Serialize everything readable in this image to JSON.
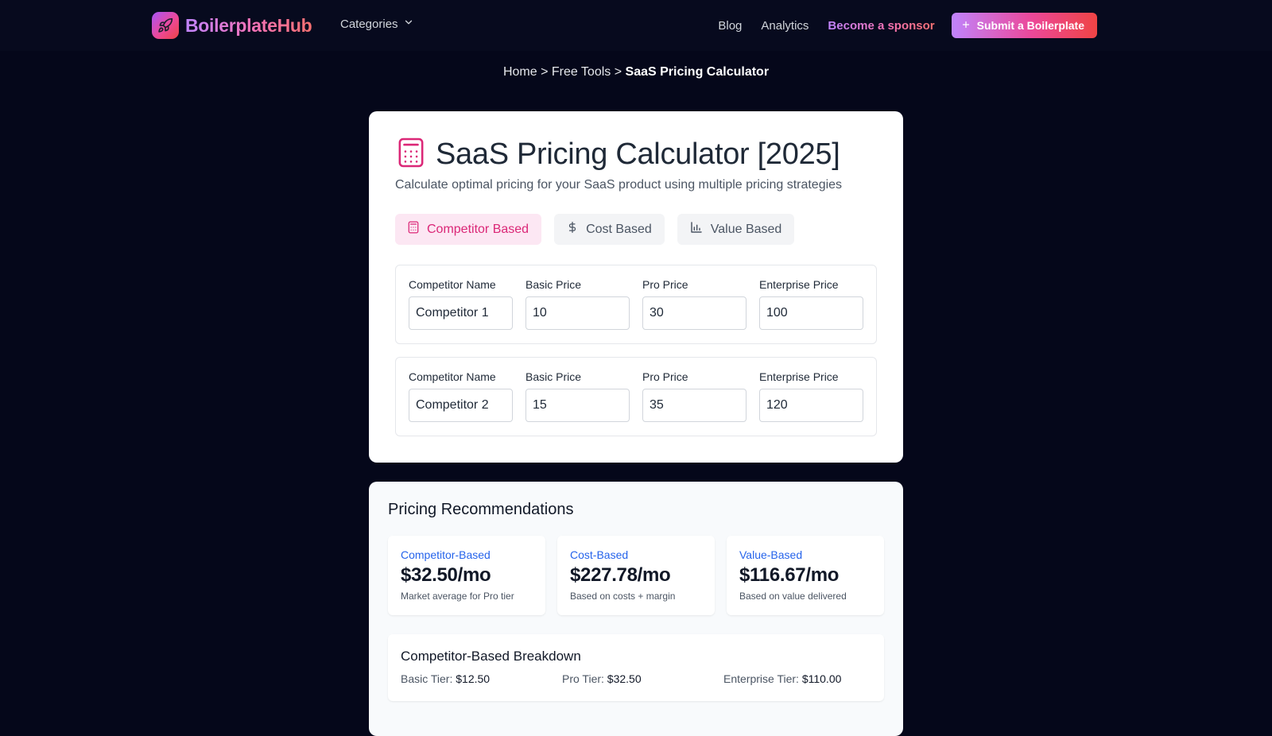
{
  "nav": {
    "logo_text": "BoilerplateHub",
    "categories_label": "Categories",
    "links": [
      "Blog",
      "Analytics"
    ],
    "sponsor_label": "Become a sponsor",
    "submit_label": "Submit a Boilerplate"
  },
  "breadcrumb": {
    "home": "Home",
    "tools": "Free Tools",
    "current": "SaaS Pricing Calculator",
    "separator": ">"
  },
  "calculator": {
    "title": "SaaS Pricing Calculator [2025]",
    "subtitle": "Calculate optimal pricing for your SaaS product using multiple pricing strategies",
    "tabs": [
      {
        "label": "Competitor Based",
        "icon": "calculator-icon",
        "active": true
      },
      {
        "label": "Cost Based",
        "icon": "dollar-icon",
        "active": false
      },
      {
        "label": "Value Based",
        "icon": "bar-chart-icon",
        "active": false
      }
    ],
    "field_labels": {
      "name": "Competitor Name",
      "basic": "Basic Price",
      "pro": "Pro Price",
      "enterprise": "Enterprise Price"
    },
    "competitors": [
      {
        "name": "Competitor 1",
        "basic": "10",
        "pro": "30",
        "enterprise": "100"
      },
      {
        "name": "Competitor 2",
        "basic": "15",
        "pro": "35",
        "enterprise": "120"
      }
    ]
  },
  "recommendations": {
    "title": "Pricing Recommendations",
    "cards": [
      {
        "label": "Competitor-Based",
        "value": "$32.50/mo",
        "note": "Market average for Pro tier"
      },
      {
        "label": "Cost-Based",
        "value": "$227.78/mo",
        "note": "Based on costs + margin"
      },
      {
        "label": "Value-Based",
        "value": "$116.67/mo",
        "note": "Based on value delivered"
      }
    ],
    "breakdown": {
      "title": "Competitor-Based Breakdown",
      "tiers": [
        {
          "label": "Basic Tier:",
          "value": "$12.50"
        },
        {
          "label": "Pro Tier:",
          "value": "$32.50"
        },
        {
          "label": "Enterprise Tier:",
          "value": "$110.00"
        }
      ]
    }
  },
  "colors": {
    "background": "#05071a",
    "accent_pink": "#db2777",
    "link_blue": "#2563eb"
  }
}
